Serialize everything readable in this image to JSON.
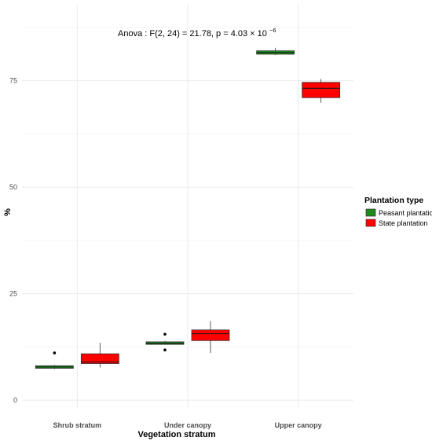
{
  "chart_data": {
    "type": "box",
    "xlabel": "Vegetation stratum",
    "ylabel": "%",
    "categories": [
      "Shrub stratum",
      "Under canopy",
      "Upper canopy"
    ],
    "ylim": [
      -2,
      93
    ],
    "yticks": [
      0,
      25,
      50,
      75
    ],
    "grid": true,
    "legend": {
      "title": "Plantation type",
      "position": "right",
      "entries": [
        "Peasant plantation",
        "State plantation"
      ]
    },
    "annotation": {
      "main": "Anova : F(2, 24) = 21.78, p = 4.03 × 10",
      "exponent": "−6"
    },
    "series": [
      {
        "name": "Peasant plantation",
        "color": "#1a8a1a",
        "boxes": [
          {
            "min": 7.3,
            "q1": 7.5,
            "median": 7.8,
            "q3": 8.1,
            "max": 8.3,
            "outliers": [
              11.1
            ]
          },
          {
            "min": 13.0,
            "q1": 13.1,
            "median": 13.4,
            "q3": 13.7,
            "max": 13.9,
            "outliers": [
              15.5,
              11.8
            ]
          },
          {
            "min": 81.0,
            "q1": 81.2,
            "median": 81.6,
            "q3": 82.0,
            "max": 82.7,
            "outliers": []
          }
        ]
      },
      {
        "name": "State plantation",
        "color": "#ff0000",
        "boxes": [
          {
            "min": 7.7,
            "q1": 8.6,
            "median": 9.0,
            "q3": 10.9,
            "max": 13.5,
            "outliers": []
          },
          {
            "min": 11.1,
            "q1": 14.0,
            "median": 15.6,
            "q3": 16.5,
            "max": 18.6,
            "outliers": []
          },
          {
            "min": 69.8,
            "q1": 71.0,
            "median": 73.2,
            "q3": 74.6,
            "max": 75.4,
            "outliers": []
          }
        ]
      }
    ]
  }
}
